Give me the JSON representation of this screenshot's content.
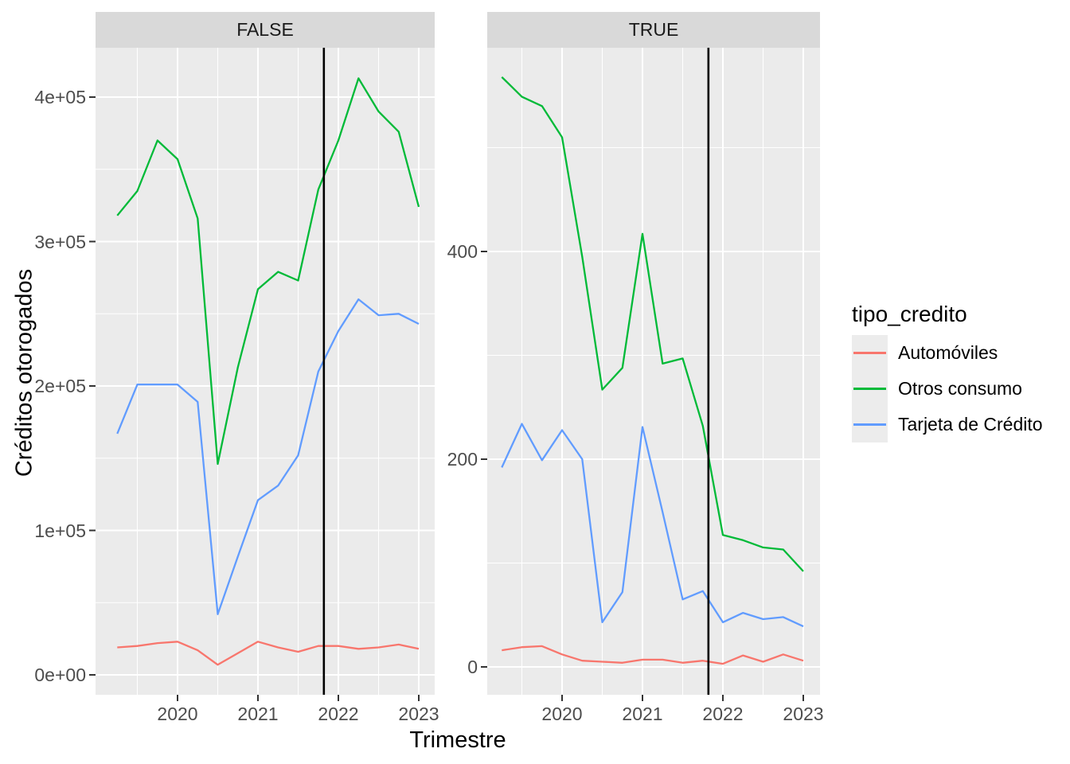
{
  "figure": {
    "x_axis_title": "Trimestre",
    "y_axis_title": "Créditos otorogados",
    "facet_variable_values": [
      "FALSE",
      "TRUE"
    ],
    "legend": {
      "title": "tipo_credito",
      "entries": [
        {
          "label": "Automóviles",
          "color": "#F8766D"
        },
        {
          "label": "Otros consumo",
          "color": "#00BA38"
        },
        {
          "label": "Tarjeta de Crédito",
          "color": "#619CFF"
        }
      ]
    },
    "theme_colors": {
      "panel_background": "#EBEBEB",
      "strip_background": "#D9D9D9",
      "gridline": "#FFFFFF",
      "axis_text": "#4D4D4D",
      "strip_text": "#1A1A1A",
      "tick_mark": "#333333",
      "reference_line": "#000000"
    }
  },
  "chart_data": {
    "type": "line",
    "faceted": true,
    "facet_variable": "tipo_credito facetted by FALSE/TRUE",
    "x_unit": "decimal years (quarterly points)",
    "x": [
      2019.25,
      2019.5,
      2019.75,
      2020.0,
      2020.25,
      2020.5,
      2020.75,
      2021.0,
      2021.25,
      2021.5,
      2021.75,
      2022.0,
      2022.25,
      2022.5,
      2022.75,
      2023.0
    ],
    "legend_position": "right",
    "grid": true,
    "facets": [
      {
        "name": "FALSE",
        "x_ticks": [
          2020,
          2021,
          2022,
          2023
        ],
        "x_tick_labels": [
          "2020",
          "2021",
          "2022",
          "2023"
        ],
        "y_ticks": [
          0,
          100000,
          200000,
          300000,
          400000
        ],
        "y_tick_labels": [
          "0e+00",
          "1e+05",
          "2e+05",
          "3e+05",
          "4e+05"
        ],
        "ylim": [
          -16000,
          436000
        ],
        "vline_x": 2021.82,
        "series": [
          {
            "name": "Automóviles",
            "color": "#F8766D",
            "values": [
              19000,
              20000,
              22000,
              23000,
              17000,
              7000,
              15000,
              23000,
              19000,
              16000,
              20000,
              20000,
              18000,
              19000,
              21000,
              18000
            ]
          },
          {
            "name": "Otros consumo",
            "color": "#00BA38",
            "values": [
              318000,
              335000,
              370000,
              357000,
              316000,
              146000,
              213000,
              267000,
              279000,
              273000,
              336000,
              370000,
              413000,
              390000,
              376000,
              324000
            ]
          },
          {
            "name": "Tarjeta de Crédito",
            "color": "#619CFF",
            "values": [
              167000,
              201000,
              201000,
              201000,
              189000,
              42000,
              82000,
              121000,
              131000,
              152000,
              210000,
              238000,
              260000,
              249000,
              250000,
              243000
            ]
          }
        ]
      },
      {
        "name": "TRUE",
        "x_ticks": [
          2020,
          2021,
          2022,
          2023
        ],
        "x_tick_labels": [
          "2020",
          "2021",
          "2022",
          "2023"
        ],
        "y_ticks": [
          0,
          200,
          400
        ],
        "y_tick_labels": [
          "0",
          "200",
          "400"
        ],
        "ylim": [
          -24,
          596
        ],
        "vline_x": 2021.82,
        "series": [
          {
            "name": "Automóviles",
            "color": "#F8766D",
            "values": [
              16,
              19,
              20,
              12,
              6,
              5,
              4,
              7,
              7,
              4,
              6,
              3,
              11,
              5,
              12,
              6
            ]
          },
          {
            "name": "Otros consumo",
            "color": "#00BA38",
            "values": [
              568,
              549,
              540,
              510,
              395,
              267,
              288,
              417,
              292,
              297,
              232,
              127,
              122,
              115,
              113,
              92
            ]
          },
          {
            "name": "Tarjeta de Crédito",
            "color": "#619CFF",
            "values": [
              192,
              234,
              199,
              228,
              200,
              43,
              72,
              231,
              149,
              65,
              73,
              43,
              52,
              46,
              48,
              39
            ]
          }
        ]
      }
    ]
  }
}
